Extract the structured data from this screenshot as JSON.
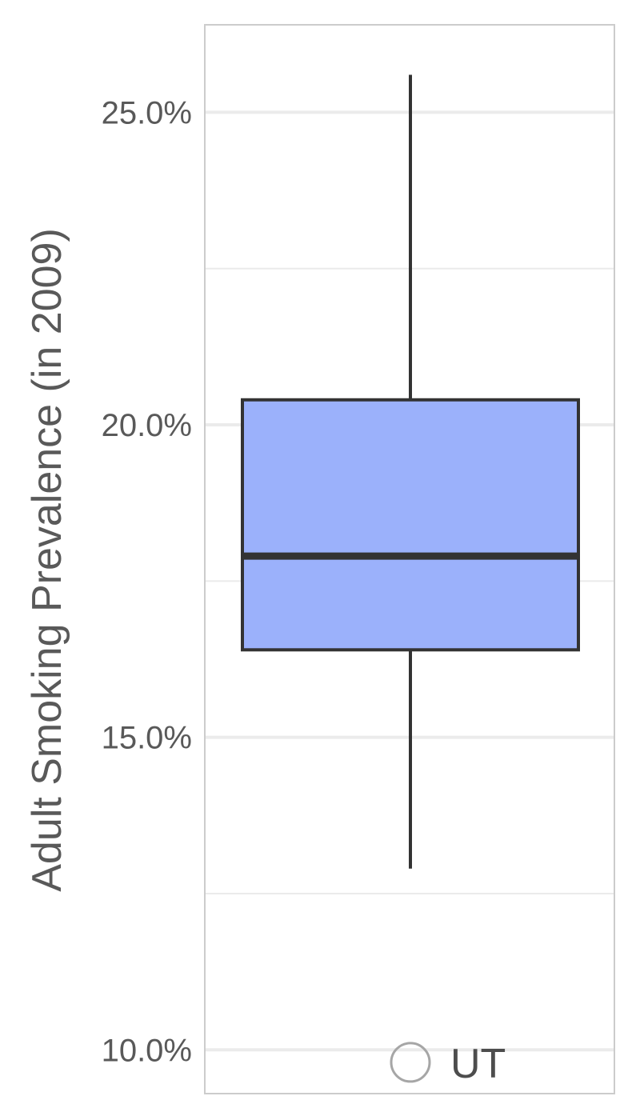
{
  "chart_data": {
    "type": "box",
    "title": "",
    "xlabel": "",
    "ylabel": "Adult Smoking Prevalence (in 2009)",
    "ylim": [
      9.3,
      26.4
    ],
    "y_ticks": [
      10,
      15,
      20,
      25
    ],
    "y_tick_labels": [
      "10.0%",
      "15.0%",
      "20.0%",
      "25.0%"
    ],
    "y_minor_ticks": [
      12.5,
      17.5,
      22.5
    ],
    "grid": true,
    "box": {
      "min": 12.9,
      "q1": 16.4,
      "median": 17.9,
      "q3": 20.4,
      "max": 25.6,
      "fill": "#9bb1fb",
      "stroke": "#333333"
    },
    "outliers": [
      {
        "y": 9.8,
        "label": "UT"
      }
    ],
    "colors": {
      "box_fill": "#9bb1fb",
      "line": "#333333",
      "grid": "#ebebeb",
      "panel_border": "#cccccc",
      "outlier_stroke": "#a6a6a6"
    }
  }
}
